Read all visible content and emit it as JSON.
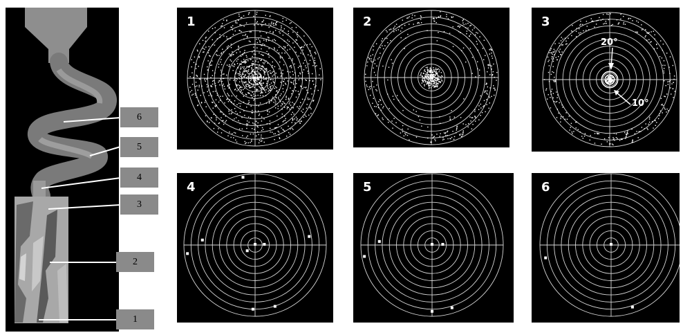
{
  "callouts": [
    "1",
    "2",
    "3",
    "4",
    "5",
    "6"
  ],
  "pole_figures": [
    {
      "label": "1",
      "density": "uniform"
    },
    {
      "label": "2",
      "density": "center-cluster-with-rim"
    },
    {
      "label": "3",
      "density": "tight-center-with-rim"
    },
    {
      "label": "4",
      "density": "sparse-points"
    },
    {
      "label": "5",
      "density": "sparse-points"
    },
    {
      "label": "6",
      "density": "sparse-points"
    }
  ],
  "annotations": {
    "angle_outer": "20°",
    "angle_inner": "10°"
  },
  "colors": {
    "background": "#000000",
    "grid": "#d8d8d8",
    "points": "#ffffff",
    "callout": "#8a8a8a"
  }
}
